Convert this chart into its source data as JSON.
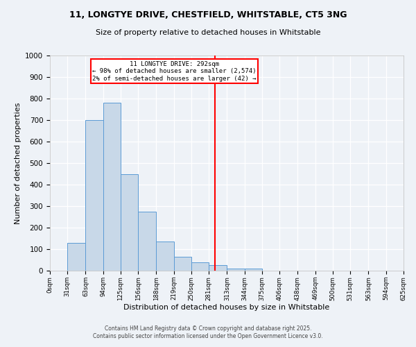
{
  "title": "11, LONGTYE DRIVE, CHESTFIELD, WHITSTABLE, CT5 3NG",
  "subtitle": "Size of property relative to detached houses in Whitstable",
  "xlabel": "Distribution of detached houses by size in Whitstable",
  "ylabel": "Number of detached properties",
  "bar_edges": [
    0,
    31,
    63,
    94,
    125,
    156,
    188,
    219,
    250,
    281,
    313,
    344,
    375,
    406,
    438,
    469,
    500,
    531,
    563,
    594,
    625
  ],
  "bar_heights": [
    0,
    130,
    700,
    780,
    450,
    275,
    135,
    65,
    40,
    25,
    10,
    10,
    0,
    0,
    0,
    0,
    0,
    0,
    0,
    0
  ],
  "bar_color": "#c8d8e8",
  "bar_edge_color": "#5b9bd5",
  "vline_x": 292,
  "vline_color": "red",
  "annotation_title": "11 LONGTYE DRIVE: 292sqm",
  "annotation_line1": "← 98% of detached houses are smaller (2,574)",
  "annotation_line2": "2% of semi-detached houses are larger (42) →",
  "annotation_box_color": "red",
  "xlim": [
    0,
    625
  ],
  "ylim": [
    0,
    1000
  ],
  "yticks": [
    0,
    100,
    200,
    300,
    400,
    500,
    600,
    700,
    800,
    900,
    1000
  ],
  "xtick_labels": [
    "0sqm",
    "31sqm",
    "63sqm",
    "94sqm",
    "125sqm",
    "156sqm",
    "188sqm",
    "219sqm",
    "250sqm",
    "281sqm",
    "313sqm",
    "344sqm",
    "375sqm",
    "406sqm",
    "438sqm",
    "469sqm",
    "500sqm",
    "531sqm",
    "563sqm",
    "594sqm",
    "625sqm"
  ],
  "footer1": "Contains HM Land Registry data © Crown copyright and database right 2025.",
  "footer2": "Contains public sector information licensed under the Open Government Licence v3.0.",
  "background_color": "#eef2f7",
  "grid_color": "#ffffff"
}
